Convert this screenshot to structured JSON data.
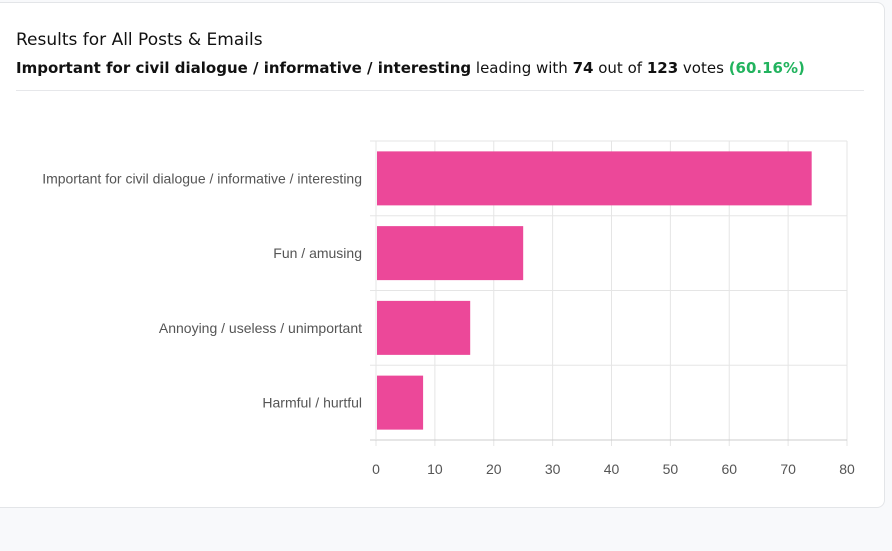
{
  "header": {
    "title": "Results for All Posts & Emails",
    "leader": "Important for civil dialogue / informative / interesting",
    "leading_with": "leading with",
    "count": "74",
    "out_of": "out of",
    "total": "123",
    "votes": "votes",
    "percent": "(60.16%)"
  },
  "colors": {
    "bar": "#ec4899",
    "percent": "#22b35e",
    "grid": "#e5e5e5",
    "axis": "#cccccc",
    "label": "#555555"
  },
  "chart_data": {
    "type": "bar",
    "orientation": "horizontal",
    "categories": [
      "Important for civil dialogue / informative / interesting",
      "Fun / amusing",
      "Annoying / useless / unimportant",
      "Harmful / hurtful"
    ],
    "values": [
      74,
      25,
      16,
      8
    ],
    "xlim": [
      0,
      80
    ],
    "xticks": [
      0,
      10,
      20,
      30,
      40,
      50,
      60,
      70,
      80
    ],
    "grid": true,
    "legend": false
  }
}
